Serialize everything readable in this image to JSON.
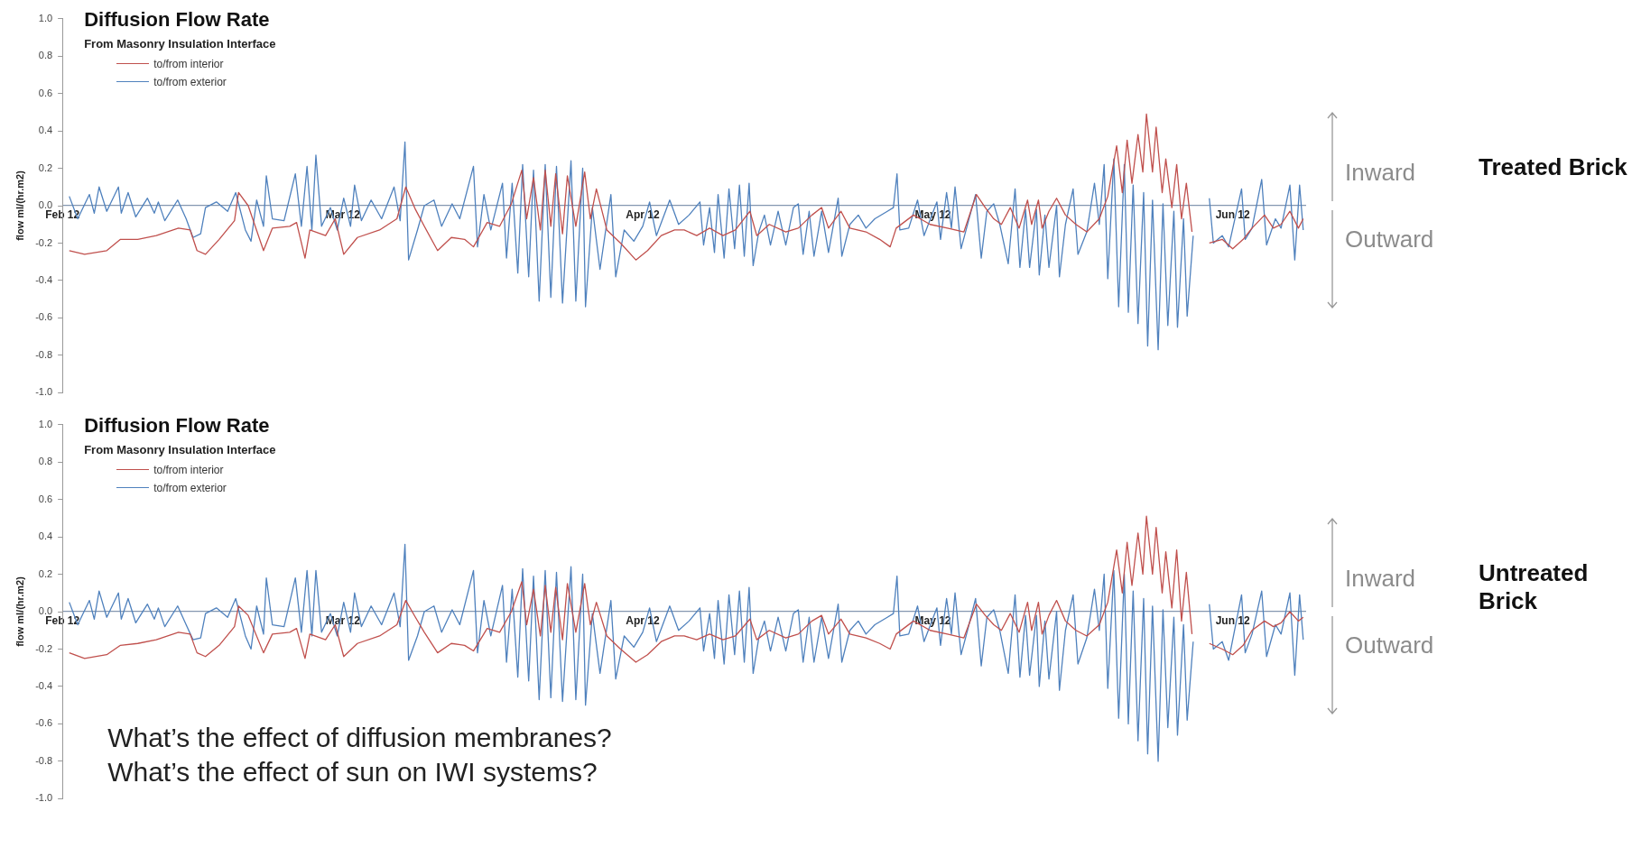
{
  "chart_data": [
    {
      "type": "line",
      "title": "Diffusion Flow Rate",
      "subtitle": "From Masonry Insulation Interface",
      "ylabel": "flow ml/(hr.m2)",
      "legend": "top left",
      "marker": "none",
      "xlim": [
        "2012-02-01",
        "2012-06-08T12:00"
      ],
      "xticks": [
        {
          "value": "2012-02-01",
          "label": "Feb 12"
        },
        {
          "value": "2012-03-01",
          "label": "Mar 12"
        },
        {
          "value": "2012-04-01",
          "label": "Apr 12"
        },
        {
          "value": "2012-05-01",
          "label": "May 12"
        },
        {
          "value": "2012-06-01",
          "label": "Jun 12"
        }
      ],
      "ylim": [
        -1,
        1
      ],
      "yticks": [
        {
          "value": 1,
          "label": "1.0"
        },
        0.8,
        0.6,
        0.4,
        0.2,
        {
          "value": 0,
          "label": "0.0"
        },
        -0.2,
        -0.4,
        -0.6,
        -0.8,
        {
          "value": -1,
          "label": "-1.0"
        }
      ],
      "annotations": [
        "Inward",
        "Outward",
        "Treated Brick"
      ],
      "series": [
        {
          "name": "to/from interior",
          "color": "#c0504d",
          "x": [
            "2012-02-01T17:00",
            "2012-02-03T07:00",
            "2012-02-05T14:00",
            "2012-02-07T00:00",
            "2012-02-08T19:00",
            "2012-02-10T17:00",
            "2012-02-13T00:00",
            "2012-02-14T05:00",
            "2012-02-14T22:00",
            "2012-02-15T19:00",
            "2012-02-17T05:00",
            "2012-02-18T19:00",
            "2012-02-19T05:00",
            "2012-02-20T05:00",
            "2012-02-21T19:00",
            "2012-02-22T17:00",
            "2012-02-24T12:00",
            "2012-02-25T05:00",
            "2012-02-26T02:00",
            "2012-02-26T14:00",
            "2012-02-28T05:00",
            "2012-02-29T05:00",
            "2012-03-01T02:00",
            "2012-03-02T12:00",
            "2012-03-04T19:00",
            "2012-03-06T14:00",
            "2012-03-07T12:00",
            "2012-03-08T12:00",
            "2012-03-09T10:00",
            "2012-03-10T19:00",
            "2012-03-12T05:00",
            "2012-03-13T14:00",
            "2012-03-14T12:00",
            "2012-03-15T22:00",
            "2012-03-17T05:00",
            "2012-03-18T10:00",
            "2012-03-19T12:00",
            "2012-03-20T00:00",
            "2012-03-20T17:00",
            "2012-03-21T10:00",
            "2012-03-21T22:00",
            "2012-03-22T12:00",
            "2012-03-23T00:00",
            "2012-03-23T17:00",
            "2012-03-24T05:00",
            "2012-03-25T02:00",
            "2012-03-26T00:00",
            "2012-03-26T14:00",
            "2012-03-27T05:00",
            "2012-03-28T07:00",
            "2012-03-29T17:00",
            "2012-03-31T07:00",
            "2012-04-01T12:00",
            "2012-04-02T22:00",
            "2012-04-04T07:00",
            "2012-04-05T07:00",
            "2012-04-06T14:00",
            "2012-04-07T22:00",
            "2012-04-09T07:00",
            "2012-04-10T14:00",
            "2012-04-12T02:00",
            "2012-04-12T19:00",
            "2012-04-14T02:00",
            "2012-04-15T19:00",
            "2012-04-17T02:00",
            "2012-04-18T12:00",
            "2012-04-19T12:00",
            "2012-04-20T05:00",
            "2012-04-21T12:00",
            "2012-04-22T10:00",
            "2012-04-24T02:00",
            "2012-04-25T12:00",
            "2012-04-26T14:00",
            "2012-04-27T05:00",
            "2012-04-29T00:00",
            "2012-04-30T17:00",
            "2012-05-02T12:00",
            "2012-05-04T05:00",
            "2012-05-05T12:00",
            "2012-05-06T10:00",
            "2012-05-07T07:00",
            "2012-05-08T02:00",
            "2012-05-09T00:00",
            "2012-05-09T22:00",
            "2012-05-10T19:00",
            "2012-05-11T05:00",
            "2012-05-11T22:00",
            "2012-05-12T07:00",
            "2012-05-13T00:00",
            "2012-05-13T19:00",
            "2012-05-14T17:00",
            "2012-05-15T19:00",
            "2012-05-16T22:00",
            "2012-05-18T05:00",
            "2012-05-19T02:00",
            "2012-05-20T00:00",
            "2012-05-20T14:00",
            "2012-05-21T02:00",
            "2012-05-21T14:00",
            "2012-05-22T05:00",
            "2012-05-22T17:00",
            "2012-05-23T02:00",
            "2012-05-23T17:00",
            "2012-05-24T02:00",
            "2012-05-24T17:00",
            "2012-05-25T02:00",
            "2012-05-25T17:00",
            "2012-05-26T05:00",
            "2012-05-26T17:00",
            "2012-05-27T05:00",
            "2012-05-27T19:00",
            "2012-05-28T17:00",
            "2012-05-29T14:00",
            "2012-05-30T22:00",
            "2012-06-01T00:00",
            "2012-06-02T02:00",
            "2012-06-03T00:00",
            "2012-06-04T07:00",
            "2012-06-05T05:00",
            "2012-06-06T00:00",
            "2012-06-06T22:00",
            "2012-06-07T19:00",
            "2012-06-08T07:00"
          ],
          "values": [
            -0.24,
            -0.26,
            -0.24,
            -0.18,
            -0.18,
            -0.16,
            -0.12,
            -0.13,
            -0.24,
            -0.26,
            -0.18,
            -0.08,
            0.07,
            0.0,
            -0.24,
            -0.12,
            -0.11,
            -0.09,
            -0.28,
            -0.13,
            -0.16,
            -0.07,
            -0.26,
            -0.17,
            -0.13,
            -0.07,
            0.1,
            -0.02,
            -0.11,
            -0.24,
            -0.17,
            -0.18,
            -0.22,
            -0.09,
            -0.11,
            0.01,
            0.19,
            -0.07,
            0.15,
            -0.13,
            0.19,
            -0.11,
            0.17,
            -0.15,
            0.16,
            -0.11,
            0.18,
            -0.07,
            0.09,
            -0.13,
            -0.2,
            -0.29,
            -0.24,
            -0.16,
            -0.13,
            -0.13,
            -0.16,
            -0.12,
            -0.16,
            -0.13,
            -0.03,
            -0.16,
            -0.1,
            -0.14,
            -0.12,
            -0.05,
            -0.01,
            -0.12,
            -0.03,
            -0.12,
            -0.14,
            -0.18,
            -0.22,
            -0.12,
            -0.05,
            -0.1,
            -0.12,
            -0.14,
            0.06,
            -0.01,
            -0.07,
            -0.1,
            -0.01,
            -0.12,
            0.03,
            -0.1,
            0.03,
            -0.12,
            -0.03,
            0.04,
            -0.05,
            -0.1,
            -0.14,
            -0.07,
            0.05,
            0.32,
            0.07,
            0.35,
            0.12,
            0.38,
            0.18,
            0.49,
            0.18,
            0.42,
            0.07,
            0.25,
            -0.01,
            0.22,
            -0.07,
            0.12,
            -0.14,
            null,
            -0.2,
            -0.18,
            -0.23,
            -0.18,
            -0.12,
            -0.05,
            -0.12,
            -0.1,
            -0.03,
            -0.12,
            -0.07
          ]
        },
        {
          "name": "to/from exterior",
          "color": "#4f81bd",
          "x": [
            "2012-02-01T17:00",
            "2012-02-02T14:00",
            "2012-02-03T19:00",
            "2012-02-04T07:00",
            "2012-02-04T19:00",
            "2012-02-05T14:00",
            "2012-02-06T19:00",
            "2012-02-07T02:00",
            "2012-02-07T19:00",
            "2012-02-08T14:00",
            "2012-02-09T19:00",
            "2012-02-10T12:00",
            "2012-02-10T22:00",
            "2012-02-11T14:00",
            "2012-02-12T22:00",
            "2012-02-13T19:00",
            "2012-02-14T12:00",
            "2012-02-15T07:00",
            "2012-02-15T19:00",
            "2012-02-16T22:00",
            "2012-02-18T02:00",
            "2012-02-18T22:00",
            "2012-02-19T22:00",
            "2012-02-20T12:00",
            "2012-02-21T02:00",
            "2012-02-21T19:00",
            "2012-02-22T02:00",
            "2012-02-22T17:00",
            "2012-02-23T22:00",
            "2012-02-25T02:00",
            "2012-02-25T17:00",
            "2012-02-26T07:00",
            "2012-02-26T19:00",
            "2012-02-27T05:00",
            "2012-02-27T19:00",
            "2012-02-28T17:00",
            "2012-02-29T10:00",
            "2012-03-01T02:00",
            "2012-03-01T19:00",
            "2012-03-02T05:00",
            "2012-03-02T22:00",
            "2012-03-03T22:00",
            "2012-03-05T00:00",
            "2012-03-06T07:00",
            "2012-03-06T22:00",
            "2012-03-07T10:00",
            "2012-03-07T19:00",
            "2012-03-08T17:00",
            "2012-03-09T10:00",
            "2012-03-10T10:00",
            "2012-03-11T05:00",
            "2012-03-12T07:00",
            "2012-03-13T02:00",
            "2012-03-14T12:00",
            "2012-03-14T22:00",
            "2012-03-15T14:00",
            "2012-03-16T07:00",
            "2012-03-17T12:00",
            "2012-03-17T22:00",
            "2012-03-18T12:00",
            "2012-03-19T02:00",
            "2012-03-19T14:00",
            "2012-03-20T05:00",
            "2012-03-20T17:00",
            "2012-03-21T07:00",
            "2012-03-21T22:00",
            "2012-03-22T12:00",
            "2012-03-23T02:00",
            "2012-03-23T17:00",
            "2012-03-24T14:00",
            "2012-03-25T02:00",
            "2012-03-25T19:00",
            "2012-03-26T02:00",
            "2012-03-26T19:00",
            "2012-03-27T14:00",
            "2012-03-28T17:00",
            "2012-03-29T05:00",
            "2012-03-30T02:00",
            "2012-03-31T02:00",
            "2012-04-01T00:00",
            "2012-04-01T17:00",
            "2012-04-02T10:00",
            "2012-04-03T19:00",
            "2012-04-04T17:00",
            "2012-04-05T19:00",
            "2012-04-06T22:00",
            "2012-04-07T07:00",
            "2012-04-07T22:00",
            "2012-04-08T10:00",
            "2012-04-08T19:00",
            "2012-04-09T10:00",
            "2012-04-09T22:00",
            "2012-04-10T12:00",
            "2012-04-11T00:00",
            "2012-04-11T12:00",
            "2012-04-12T00:00",
            "2012-04-12T10:00",
            "2012-04-13T00:00",
            "2012-04-13T14:00",
            "2012-04-14T05:00",
            "2012-04-15T00:00",
            "2012-04-15T19:00",
            "2012-04-16T14:00",
            "2012-04-17T02:00",
            "2012-04-17T14:00",
            "2012-04-18T05:00",
            "2012-04-18T17:00",
            "2012-04-19T12:00",
            "2012-04-20T05:00",
            "2012-04-21T05:00",
            "2012-04-21T14:00",
            "2012-04-22T10:00",
            "2012-04-23T07:00",
            "2012-04-24T02:00",
            "2012-04-25T00:00",
            "2012-04-26T07:00",
            "2012-04-26T22:00",
            "2012-04-27T07:00",
            "2012-04-27T14:00",
            "2012-04-28T12:00",
            "2012-04-29T10:00",
            "2012-04-30T02:00",
            "2012-05-01T10:00",
            "2012-05-01T19:00",
            "2012-05-02T10:00",
            "2012-05-02T22:00",
            "2012-05-03T07:00",
            "2012-05-03T22:00",
            "2012-05-04T14:00",
            "2012-05-05T10:00",
            "2012-05-06T00:00",
            "2012-05-06T14:00",
            "2012-05-07T07:00",
            "2012-05-07T22:00",
            "2012-05-08T19:00",
            "2012-05-09T12:00",
            "2012-05-10T00:00",
            "2012-05-10T14:00",
            "2012-05-11T00:00",
            "2012-05-11T17:00",
            "2012-05-12T00:00",
            "2012-05-12T14:00",
            "2012-05-13T00:00",
            "2012-05-13T19:00",
            "2012-05-14T02:00",
            "2012-05-14T17:00",
            "2012-05-15T12:00",
            "2012-05-16T00:00",
            "2012-05-16T22:00",
            "2012-05-17T17:00",
            "2012-05-18T05:00",
            "2012-05-18T17:00",
            "2012-05-19T02:00",
            "2012-05-19T17:00",
            "2012-05-20T05:00",
            "2012-05-20T19:00",
            "2012-05-21T05:00",
            "2012-05-21T17:00",
            "2012-05-22T05:00",
            "2012-05-22T19:00",
            "2012-05-23T05:00",
            "2012-05-23T17:00",
            "2012-05-24T07:00",
            "2012-05-24T19:00",
            "2012-05-25T07:00",
            "2012-05-25T22:00",
            "2012-05-26T07:00",
            "2012-05-26T22:00",
            "2012-05-27T07:00",
            "2012-05-27T22:00",
            "2012-05-28T19:00",
            "2012-05-29T14:00",
            "2012-05-30T00:00",
            "2012-05-30T22:00",
            "2012-05-31T14:00",
            "2012-06-01T22:00",
            "2012-06-02T07:00",
            "2012-06-03T00:00",
            "2012-06-04T00:00",
            "2012-06-04T12:00",
            "2012-06-05T10:00",
            "2012-06-06T00:00",
            "2012-06-06T22:00",
            "2012-06-07T10:00",
            "2012-06-07T22:00",
            "2012-06-08T07:00"
          ],
          "values": [
            0.05,
            -0.07,
            0.06,
            -0.04,
            0.1,
            -0.03,
            0.1,
            -0.04,
            0.07,
            -0.06,
            0.04,
            -0.04,
            0.02,
            -0.08,
            0.03,
            -0.07,
            -0.17,
            -0.15,
            -0.01,
            0.02,
            -0.03,
            0.07,
            -0.13,
            -0.19,
            0.03,
            -0.11,
            0.16,
            -0.07,
            -0.08,
            0.17,
            -0.11,
            0.21,
            -0.13,
            0.27,
            -0.11,
            -0.01,
            -0.13,
            0.04,
            -0.11,
            0.11,
            -0.08,
            0.03,
            -0.07,
            0.1,
            -0.08,
            0.34,
            -0.29,
            -0.13,
            0.0,
            0.03,
            -0.11,
            0.01,
            -0.07,
            0.21,
            -0.22,
            0.06,
            -0.13,
            0.12,
            -0.28,
            0.12,
            -0.36,
            0.22,
            -0.38,
            0.19,
            -0.51,
            0.22,
            -0.49,
            0.21,
            -0.52,
            0.24,
            -0.51,
            0.2,
            -0.54,
            -0.01,
            -0.34,
            0.06,
            -0.38,
            -0.13,
            -0.19,
            -0.11,
            0.02,
            -0.16,
            0.03,
            -0.1,
            -0.05,
            0.02,
            -0.21,
            -0.01,
            -0.25,
            0.06,
            -0.28,
            0.09,
            -0.23,
            0.11,
            -0.27,
            0.12,
            -0.32,
            -0.14,
            -0.05,
            -0.21,
            -0.03,
            -0.21,
            -0.01,
            0.01,
            -0.26,
            -0.03,
            -0.27,
            -0.03,
            -0.25,
            0.04,
            -0.27,
            -0.1,
            -0.05,
            -0.12,
            -0.07,
            -0.03,
            -0.01,
            0.17,
            -0.13,
            -0.12,
            0.03,
            -0.16,
            0.02,
            -0.18,
            0.07,
            -0.12,
            0.1,
            -0.23,
            -0.1,
            0.06,
            -0.28,
            -0.03,
            0.01,
            -0.1,
            -0.31,
            0.09,
            -0.33,
            -0.02,
            -0.33,
            -0.02,
            -0.37,
            -0.05,
            -0.33,
            0.0,
            -0.38,
            -0.1,
            0.09,
            -0.26,
            -0.14,
            0.12,
            -0.1,
            0.22,
            -0.39,
            0.25,
            -0.54,
            0.22,
            -0.57,
            0.11,
            -0.63,
            0.07,
            -0.75,
            0.03,
            -0.77,
            0.01,
            -0.64,
            -0.03,
            -0.65,
            -0.07,
            -0.59,
            -0.16,
            null,
            0.04,
            -0.2,
            -0.16,
            -0.22,
            0.09,
            -0.18,
            -0.12,
            0.14,
            -0.21,
            -0.07,
            -0.12,
            0.11,
            -0.29,
            0.11,
            -0.13
          ]
        }
      ]
    },
    {
      "type": "line",
      "title": "Diffusion Flow Rate",
      "subtitle": "From Masonry Insulation Interface",
      "ylabel": "flow ml/(hr.m2)",
      "legend": "top left",
      "marker": "none",
      "xlim": [
        "2012-02-01",
        "2012-06-08T12:00"
      ],
      "xticks": [
        {
          "value": "2012-02-01",
          "label": "Feb 12"
        },
        {
          "value": "2012-03-01",
          "label": "Mar 12"
        },
        {
          "value": "2012-04-01",
          "label": "Apr 12"
        },
        {
          "value": "2012-05-01",
          "label": "May 12"
        },
        {
          "value": "2012-06-01",
          "label": "Jun 12"
        }
      ],
      "ylim": [
        -1,
        1
      ],
      "yticks": [
        {
          "value": 1,
          "label": "1.0"
        },
        0.8,
        0.6,
        0.4,
        0.2,
        {
          "value": 0,
          "label": "0.0"
        },
        -0.2,
        -0.4,
        -0.6,
        -0.8,
        {
          "value": -1,
          "label": "-1.0"
        }
      ],
      "annotations": [
        "Inward",
        "Outward",
        "Untreated Brick",
        "What’s the effect of diffusion membranes?",
        "What’s the effect of sun on IWI systems?"
      ],
      "series": [
        {
          "name": "to/from interior",
          "color": "#c0504d",
          "x": [
            "2012-02-01T17:00",
            "2012-02-03T07:00",
            "2012-02-05T14:00",
            "2012-02-07T00:00",
            "2012-02-08T19:00",
            "2012-02-10T17:00",
            "2012-02-13T00:00",
            "2012-02-14T05:00",
            "2012-02-14T22:00",
            "2012-02-15T19:00",
            "2012-02-17T05:00",
            "2012-02-18T19:00",
            "2012-02-19T05:00",
            "2012-02-20T05:00",
            "2012-02-21T19:00",
            "2012-02-22T17:00",
            "2012-02-24T12:00",
            "2012-02-25T05:00",
            "2012-02-26T02:00",
            "2012-02-26T14:00",
            "2012-02-28T05:00",
            "2012-02-29T05:00",
            "2012-03-01T02:00",
            "2012-03-02T12:00",
            "2012-03-04T19:00",
            "2012-03-06T14:00",
            "2012-03-07T12:00",
            "2012-03-08T12:00",
            "2012-03-09T10:00",
            "2012-03-10T19:00",
            "2012-03-12T05:00",
            "2012-03-13T14:00",
            "2012-03-14T12:00",
            "2012-03-15T22:00",
            "2012-03-17T05:00",
            "2012-03-18T10:00",
            "2012-03-19T12:00",
            "2012-03-20T00:00",
            "2012-03-20T17:00",
            "2012-03-21T10:00",
            "2012-03-21T22:00",
            "2012-03-22T12:00",
            "2012-03-23T00:00",
            "2012-03-23T17:00",
            "2012-03-24T05:00",
            "2012-03-25T02:00",
            "2012-03-26T00:00",
            "2012-03-26T14:00",
            "2012-03-27T05:00",
            "2012-03-28T07:00",
            "2012-03-29T17:00",
            "2012-03-31T07:00",
            "2012-04-01T12:00",
            "2012-04-02T22:00",
            "2012-04-04T07:00",
            "2012-04-05T07:00",
            "2012-04-06T14:00",
            "2012-04-07T22:00",
            "2012-04-09T07:00",
            "2012-04-10T14:00",
            "2012-04-12T02:00",
            "2012-04-12T19:00",
            "2012-04-14T02:00",
            "2012-04-15T19:00",
            "2012-04-17T02:00",
            "2012-04-18T12:00",
            "2012-04-19T12:00",
            "2012-04-20T05:00",
            "2012-04-21T12:00",
            "2012-04-22T10:00",
            "2012-04-24T02:00",
            "2012-04-25T12:00",
            "2012-04-26T14:00",
            "2012-04-27T05:00",
            "2012-04-29T00:00",
            "2012-04-30T17:00",
            "2012-05-02T12:00",
            "2012-05-04T05:00",
            "2012-05-05T12:00",
            "2012-05-06T10:00",
            "2012-05-07T07:00",
            "2012-05-08T02:00",
            "2012-05-09T00:00",
            "2012-05-09T22:00",
            "2012-05-10T19:00",
            "2012-05-11T05:00",
            "2012-05-11T22:00",
            "2012-05-12T07:00",
            "2012-05-13T00:00",
            "2012-05-13T19:00",
            "2012-05-14T17:00",
            "2012-05-15T19:00",
            "2012-05-16T22:00",
            "2012-05-18T05:00",
            "2012-05-19T02:00",
            "2012-05-20T00:00",
            "2012-05-20T14:00",
            "2012-05-21T02:00",
            "2012-05-21T14:00",
            "2012-05-22T05:00",
            "2012-05-22T17:00",
            "2012-05-23T02:00",
            "2012-05-23T17:00",
            "2012-05-24T02:00",
            "2012-05-24T17:00",
            "2012-05-25T02:00",
            "2012-05-25T17:00",
            "2012-05-26T05:00",
            "2012-05-26T17:00",
            "2012-05-27T05:00",
            "2012-05-27T19:00",
            "2012-05-28T17:00",
            "2012-05-29T14:00",
            "2012-05-30T22:00",
            "2012-06-01T00:00",
            "2012-06-02T02:00",
            "2012-06-03T00:00",
            "2012-06-04T07:00",
            "2012-06-05T05:00",
            "2012-06-06T00:00",
            "2012-06-06T22:00",
            "2012-06-07T19:00",
            "2012-06-08T07:00"
          ],
          "values": [
            -0.22,
            -0.25,
            -0.23,
            -0.18,
            -0.17,
            -0.15,
            -0.11,
            -0.12,
            -0.22,
            -0.24,
            -0.18,
            -0.08,
            0.03,
            -0.02,
            -0.22,
            -0.12,
            -0.11,
            -0.09,
            -0.25,
            -0.12,
            -0.15,
            -0.07,
            -0.24,
            -0.17,
            -0.13,
            -0.07,
            0.06,
            -0.03,
            -0.11,
            -0.22,
            -0.17,
            -0.18,
            -0.21,
            -0.09,
            -0.11,
            0.0,
            0.16,
            -0.07,
            0.12,
            -0.13,
            0.14,
            -0.11,
            0.13,
            -0.15,
            0.15,
            -0.11,
            0.15,
            -0.07,
            0.05,
            -0.13,
            -0.2,
            -0.27,
            -0.23,
            -0.16,
            -0.13,
            -0.13,
            -0.15,
            -0.12,
            -0.15,
            -0.13,
            -0.04,
            -0.15,
            -0.1,
            -0.14,
            -0.12,
            -0.05,
            -0.02,
            -0.12,
            -0.04,
            -0.12,
            -0.14,
            -0.17,
            -0.2,
            -0.12,
            -0.05,
            -0.1,
            -0.12,
            -0.14,
            0.04,
            -0.02,
            -0.07,
            -0.1,
            -0.01,
            -0.11,
            0.05,
            -0.1,
            0.05,
            -0.12,
            -0.02,
            0.06,
            -0.05,
            -0.1,
            -0.13,
            -0.07,
            0.05,
            0.33,
            0.1,
            0.37,
            0.14,
            0.42,
            0.2,
            0.51,
            0.2,
            0.45,
            0.1,
            0.32,
            0.02,
            0.33,
            -0.05,
            0.21,
            -0.12,
            null,
            -0.17,
            -0.2,
            -0.23,
            -0.18,
            -0.1,
            -0.05,
            -0.08,
            -0.06,
            0.0,
            -0.05,
            -0.03
          ]
        },
        {
          "name": "to/from exterior",
          "color": "#4f81bd",
          "x": [
            "2012-02-01T17:00",
            "2012-02-02T14:00",
            "2012-02-03T19:00",
            "2012-02-04T07:00",
            "2012-02-04T19:00",
            "2012-02-05T14:00",
            "2012-02-06T19:00",
            "2012-02-07T02:00",
            "2012-02-07T19:00",
            "2012-02-08T14:00",
            "2012-02-09T19:00",
            "2012-02-10T12:00",
            "2012-02-10T22:00",
            "2012-02-11T14:00",
            "2012-02-12T22:00",
            "2012-02-13T19:00",
            "2012-02-14T12:00",
            "2012-02-15T07:00",
            "2012-02-15T19:00",
            "2012-02-16T22:00",
            "2012-02-18T02:00",
            "2012-02-18T22:00",
            "2012-02-19T22:00",
            "2012-02-20T12:00",
            "2012-02-21T02:00",
            "2012-02-21T19:00",
            "2012-02-22T02:00",
            "2012-02-22T17:00",
            "2012-02-23T22:00",
            "2012-02-25T02:00",
            "2012-02-25T17:00",
            "2012-02-26T07:00",
            "2012-02-26T19:00",
            "2012-02-27T05:00",
            "2012-02-27T19:00",
            "2012-02-28T17:00",
            "2012-02-29T10:00",
            "2012-03-01T02:00",
            "2012-03-01T19:00",
            "2012-03-02T05:00",
            "2012-03-02T22:00",
            "2012-03-03T22:00",
            "2012-03-05T00:00",
            "2012-03-06T07:00",
            "2012-03-06T22:00",
            "2012-03-07T10:00",
            "2012-03-07T19:00",
            "2012-03-08T17:00",
            "2012-03-09T10:00",
            "2012-03-10T10:00",
            "2012-03-11T05:00",
            "2012-03-12T07:00",
            "2012-03-13T02:00",
            "2012-03-14T12:00",
            "2012-03-14T22:00",
            "2012-03-15T14:00",
            "2012-03-16T07:00",
            "2012-03-17T12:00",
            "2012-03-17T22:00",
            "2012-03-18T12:00",
            "2012-03-19T02:00",
            "2012-03-19T14:00",
            "2012-03-20T05:00",
            "2012-03-20T17:00",
            "2012-03-21T07:00",
            "2012-03-21T22:00",
            "2012-03-22T12:00",
            "2012-03-23T02:00",
            "2012-03-23T17:00",
            "2012-03-24T14:00",
            "2012-03-25T02:00",
            "2012-03-25T19:00",
            "2012-03-26T02:00",
            "2012-03-26T19:00",
            "2012-03-27T14:00",
            "2012-03-28T17:00",
            "2012-03-29T05:00",
            "2012-03-30T02:00",
            "2012-03-31T02:00",
            "2012-04-01T00:00",
            "2012-04-01T17:00",
            "2012-04-02T10:00",
            "2012-04-03T19:00",
            "2012-04-04T17:00",
            "2012-04-05T19:00",
            "2012-04-06T22:00",
            "2012-04-07T07:00",
            "2012-04-07T22:00",
            "2012-04-08T10:00",
            "2012-04-08T19:00",
            "2012-04-09T10:00",
            "2012-04-09T22:00",
            "2012-04-10T12:00",
            "2012-04-11T00:00",
            "2012-04-11T12:00",
            "2012-04-12T00:00",
            "2012-04-12T10:00",
            "2012-04-13T00:00",
            "2012-04-13T14:00",
            "2012-04-14T05:00",
            "2012-04-15T00:00",
            "2012-04-15T19:00",
            "2012-04-16T14:00",
            "2012-04-17T02:00",
            "2012-04-17T14:00",
            "2012-04-18T05:00",
            "2012-04-18T17:00",
            "2012-04-19T12:00",
            "2012-04-20T05:00",
            "2012-04-21T05:00",
            "2012-04-21T14:00",
            "2012-04-22T10:00",
            "2012-04-23T07:00",
            "2012-04-24T02:00",
            "2012-04-25T00:00",
            "2012-04-26T07:00",
            "2012-04-26T22:00",
            "2012-04-27T07:00",
            "2012-04-27T14:00",
            "2012-04-28T12:00",
            "2012-04-29T10:00",
            "2012-04-30T02:00",
            "2012-05-01T10:00",
            "2012-05-01T19:00",
            "2012-05-02T10:00",
            "2012-05-02T22:00",
            "2012-05-03T07:00",
            "2012-05-03T22:00",
            "2012-05-04T14:00",
            "2012-05-05T10:00",
            "2012-05-06T00:00",
            "2012-05-06T14:00",
            "2012-05-07T07:00",
            "2012-05-07T22:00",
            "2012-05-08T19:00",
            "2012-05-09T12:00",
            "2012-05-10T00:00",
            "2012-05-10T14:00",
            "2012-05-11T00:00",
            "2012-05-11T17:00",
            "2012-05-12T00:00",
            "2012-05-12T14:00",
            "2012-05-13T00:00",
            "2012-05-13T19:00",
            "2012-05-14T02:00",
            "2012-05-14T17:00",
            "2012-05-15T12:00",
            "2012-05-16T00:00",
            "2012-05-16T22:00",
            "2012-05-17T17:00",
            "2012-05-18T05:00",
            "2012-05-18T17:00",
            "2012-05-19T02:00",
            "2012-05-19T17:00",
            "2012-05-20T05:00",
            "2012-05-20T19:00",
            "2012-05-21T05:00",
            "2012-05-21T17:00",
            "2012-05-22T05:00",
            "2012-05-22T19:00",
            "2012-05-23T05:00",
            "2012-05-23T17:00",
            "2012-05-24T07:00",
            "2012-05-24T19:00",
            "2012-05-25T07:00",
            "2012-05-25T22:00",
            "2012-05-26T07:00",
            "2012-05-26T22:00",
            "2012-05-27T07:00",
            "2012-05-27T22:00",
            "2012-05-28T19:00",
            "2012-05-29T14:00",
            "2012-05-30T00:00",
            "2012-05-30T22:00",
            "2012-05-31T14:00",
            "2012-06-01T22:00",
            "2012-06-02T07:00",
            "2012-06-03T00:00",
            "2012-06-04T00:00",
            "2012-06-04T12:00",
            "2012-06-05T10:00",
            "2012-06-06T00:00",
            "2012-06-06T22:00",
            "2012-06-07T10:00",
            "2012-06-07T22:00",
            "2012-06-08T07:00"
          ],
          "values": [
            0.05,
            -0.07,
            0.06,
            -0.04,
            0.11,
            -0.03,
            0.1,
            -0.04,
            0.07,
            -0.06,
            0.04,
            -0.04,
            0.02,
            -0.08,
            0.03,
            -0.07,
            -0.15,
            -0.14,
            -0.01,
            0.02,
            -0.03,
            0.07,
            -0.13,
            -0.2,
            0.03,
            -0.12,
            0.18,
            -0.07,
            -0.08,
            0.18,
            -0.11,
            0.22,
            -0.13,
            0.22,
            -0.11,
            -0.01,
            -0.13,
            0.05,
            -0.11,
            0.1,
            -0.08,
            0.03,
            -0.07,
            0.1,
            -0.08,
            0.36,
            -0.26,
            -0.13,
            0.0,
            0.03,
            -0.11,
            0.01,
            -0.07,
            0.22,
            -0.22,
            0.06,
            -0.13,
            0.14,
            -0.27,
            0.12,
            -0.35,
            0.23,
            -0.37,
            0.19,
            -0.47,
            0.22,
            -0.46,
            0.21,
            -0.48,
            0.24,
            -0.47,
            0.2,
            -0.5,
            -0.01,
            -0.33,
            0.06,
            -0.36,
            -0.13,
            -0.19,
            -0.11,
            0.02,
            -0.16,
            0.03,
            -0.1,
            -0.05,
            0.02,
            -0.21,
            -0.01,
            -0.25,
            0.06,
            -0.28,
            0.09,
            -0.23,
            0.11,
            -0.27,
            0.13,
            -0.33,
            -0.14,
            -0.05,
            -0.21,
            -0.03,
            -0.21,
            -0.01,
            0.01,
            -0.27,
            -0.03,
            -0.27,
            -0.03,
            -0.25,
            0.04,
            -0.27,
            -0.1,
            -0.05,
            -0.12,
            -0.07,
            -0.03,
            -0.01,
            0.19,
            -0.13,
            -0.12,
            0.03,
            -0.16,
            0.02,
            -0.18,
            0.07,
            -0.12,
            0.1,
            -0.23,
            -0.1,
            0.07,
            -0.29,
            -0.03,
            0.01,
            -0.1,
            -0.33,
            0.09,
            -0.35,
            -0.02,
            -0.34,
            -0.02,
            -0.4,
            -0.05,
            -0.36,
            0.0,
            -0.42,
            -0.1,
            0.09,
            -0.28,
            -0.14,
            0.12,
            -0.1,
            0.2,
            -0.41,
            0.22,
            -0.57,
            0.2,
            -0.6,
            0.11,
            -0.69,
            0.07,
            -0.76,
            0.03,
            -0.8,
            0.01,
            -0.62,
            -0.03,
            -0.66,
            -0.07,
            -0.58,
            -0.16,
            null,
            0.04,
            -0.2,
            -0.16,
            -0.26,
            0.09,
            -0.22,
            -0.12,
            0.11,
            -0.24,
            -0.07,
            -0.12,
            0.1,
            -0.34,
            0.09,
            -0.15
          ]
        }
      ]
    }
  ]
}
